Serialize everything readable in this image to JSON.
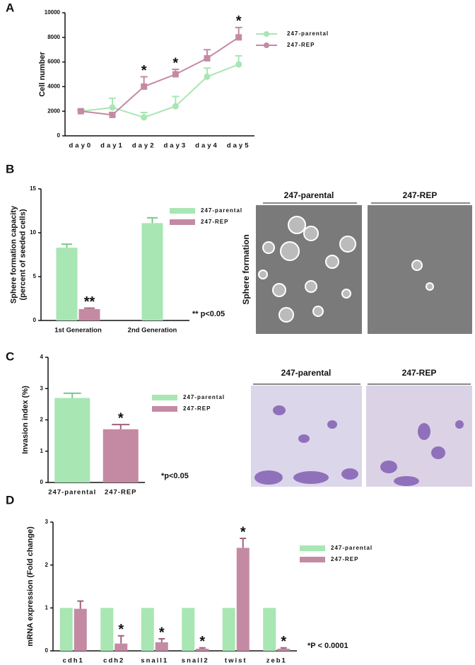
{
  "chart_data": [
    {
      "type": "line",
      "panel_label": "A",
      "ylabel": [
        "Cell number"
      ],
      "categories": [
        "day0",
        "day1",
        "day2",
        "day3",
        "day4",
        "day5"
      ],
      "series": [
        {
          "name": "247-parental",
          "color": "#a8e6b4",
          "marker": "circle",
          "values": [
            2000,
            2300,
            1500,
            2400,
            4800,
            5800
          ],
          "errors": [
            100,
            750,
            400,
            800,
            700,
            700
          ],
          "significance": [
            null,
            null,
            null,
            null,
            null,
            null
          ]
        },
        {
          "name": "247-REP",
          "color": "#c48aa4",
          "marker": "square",
          "values": [
            2000,
            1700,
            4000,
            5000,
            6300,
            8000
          ],
          "errors": [
            100,
            200,
            800,
            400,
            700,
            800
          ],
          "significance": [
            null,
            null,
            "*",
            "*",
            null,
            "*"
          ]
        }
      ],
      "ylim": [
        0,
        10000
      ],
      "yticks": [
        0,
        2000,
        4000,
        6000,
        8000,
        10000
      ]
    },
    {
      "type": "bar",
      "panel_label": "B",
      "ylabel": [
        "Sphere formation capacity",
        "(percent of seeded cells)"
      ],
      "categories": [
        "1st Generation",
        "2nd Generation"
      ],
      "series": [
        {
          "name": "247-parental",
          "color": "#a8e6b4",
          "values": [
            8.3,
            11.1
          ],
          "errors": [
            0.4,
            0.6
          ],
          "significance": [
            null,
            null
          ]
        },
        {
          "name": "247-REP",
          "color": "#c48aa4",
          "values": [
            1.3,
            null
          ],
          "errors": [
            0.1,
            null
          ],
          "significance": [
            "**",
            null
          ]
        }
      ],
      "ylim": [
        0,
        15
      ],
      "yticks": [
        0,
        5,
        10,
        15
      ],
      "note": "** p<0.05",
      "images": {
        "labels": [
          "247-parental",
          "247-REP"
        ],
        "side_label": "Sphere formation"
      }
    },
    {
      "type": "bar",
      "panel_label": "C",
      "ylabel": [
        "Invasion index (%)"
      ],
      "categories": [
        "247-parental",
        "247-REP"
      ],
      "series": [
        {
          "name": "247-parental",
          "color": "#a8e6b4",
          "values": [
            2.7,
            null
          ],
          "errors": [
            0.15,
            null
          ],
          "significance": [
            null,
            null
          ]
        },
        {
          "name": "247-REP",
          "color": "#c48aa4",
          "values": [
            null,
            1.7
          ],
          "errors": [
            null,
            0.15
          ],
          "significance": [
            null,
            "*"
          ]
        }
      ],
      "ylim": [
        0,
        4
      ],
      "yticks": [
        0,
        1,
        2,
        3,
        4
      ],
      "note": "*p<0.05",
      "images": {
        "labels": [
          "247-parental",
          "247-REP"
        ]
      }
    },
    {
      "type": "bar",
      "panel_label": "D",
      "ylabel": [
        "mRNA expression (Fold change)"
      ],
      "categories": [
        "cdh1",
        "cdh2",
        "snail1",
        "snail2",
        "twist",
        "zeb1"
      ],
      "series": [
        {
          "name": "247-parental",
          "color": "#a8e6b4",
          "values": [
            1,
            1,
            1,
            1,
            1,
            1
          ],
          "errors": [
            null,
            null,
            null,
            null,
            null,
            null
          ],
          "significance": [
            null,
            null,
            null,
            null,
            null,
            null
          ]
        },
        {
          "name": "247-REP",
          "color": "#c48aa4",
          "values": [
            0.98,
            0.17,
            0.2,
            0.05,
            2.4,
            0.05
          ],
          "errors": [
            0.18,
            0.18,
            0.08,
            0.02,
            0.22,
            0.02
          ],
          "significance": [
            null,
            "*",
            "*",
            "*",
            "*",
            "*"
          ]
        }
      ],
      "ylim": [
        0,
        3
      ],
      "yticks": [
        0,
        1,
        2,
        3
      ],
      "note": "*P < 0.0001"
    }
  ]
}
